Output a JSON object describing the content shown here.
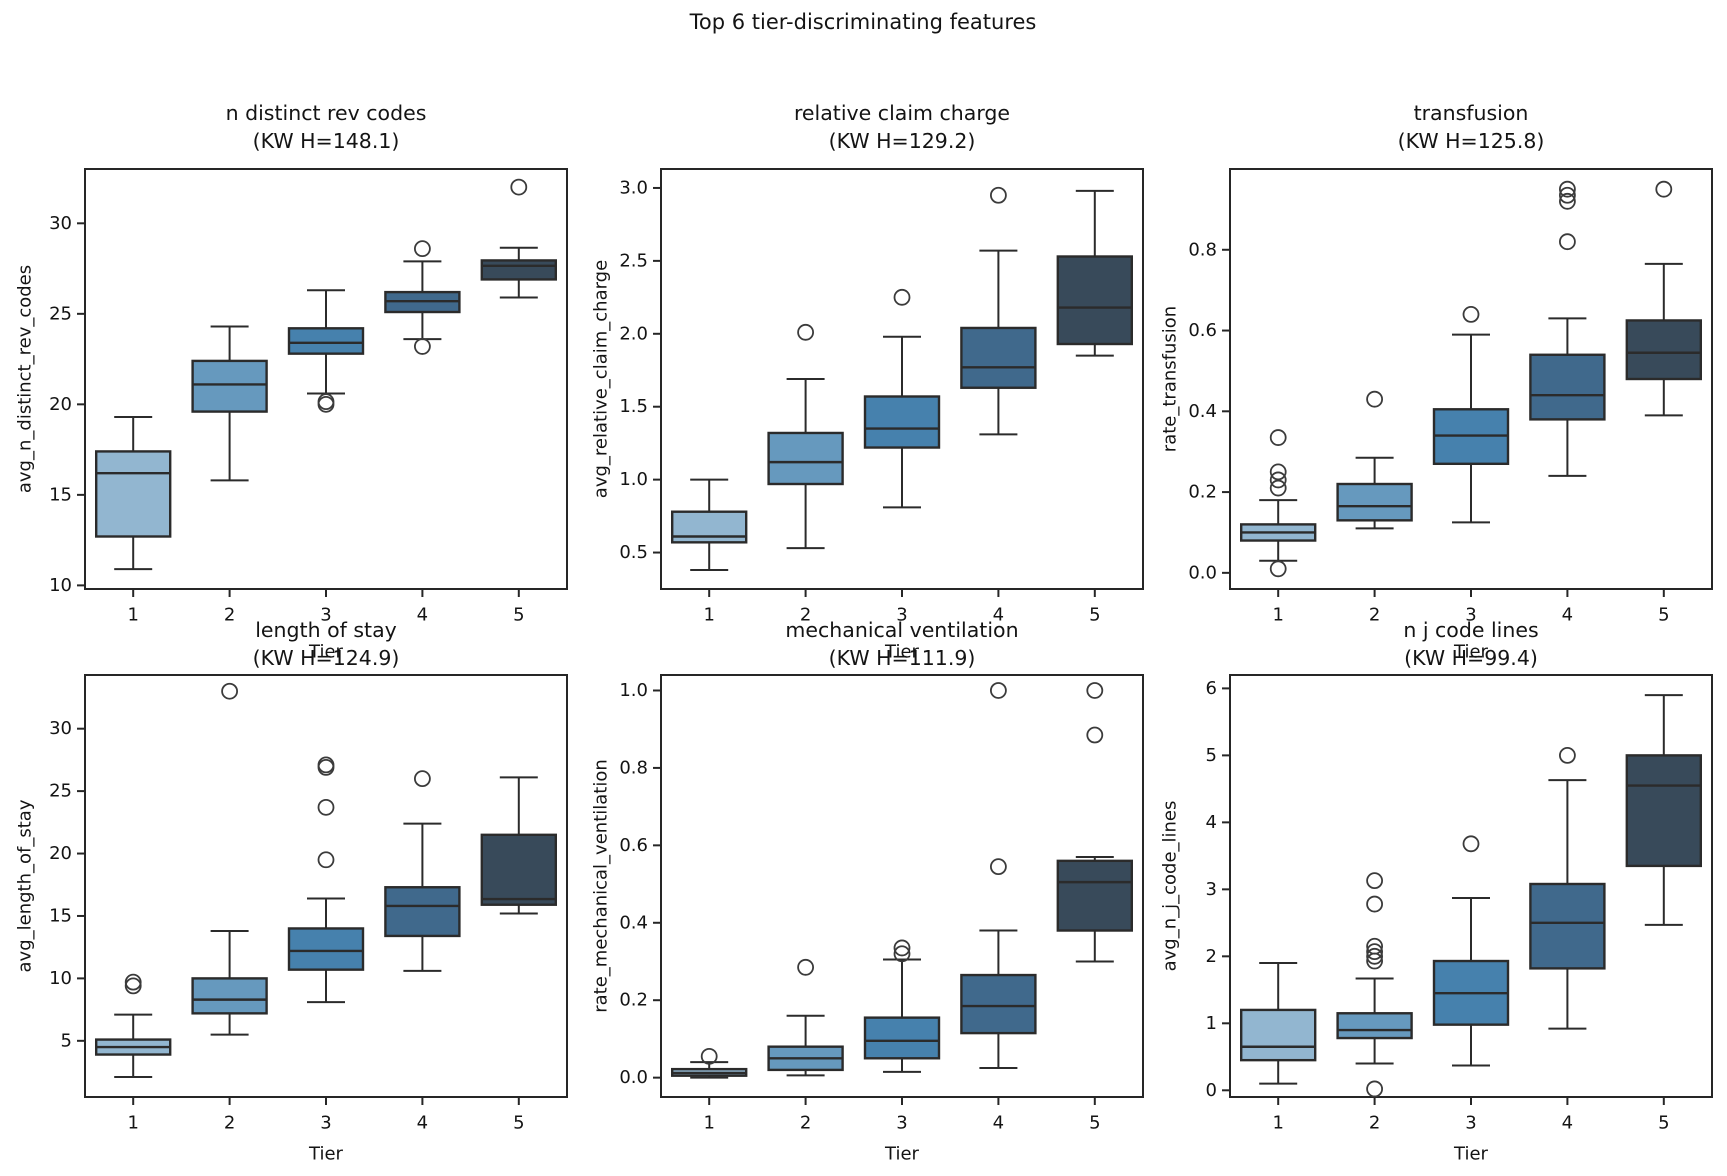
{
  "figure": {
    "title": "Top 6 tier-discriminating features",
    "background": "#ffffff",
    "tier_colors": [
      "#92b6d0",
      "#6699be",
      "#4681ad",
      "#40698c",
      "#384a5a"
    ],
    "edge_color": "#2b2b2b",
    "flier_color": "#3b3b3b",
    "spine_color": "#262626",
    "text_color": "#141414"
  },
  "chart_data": [
    {
      "type": "box",
      "title": "n distinct rev codes",
      "subtitle": "(KW H=148.1)",
      "ylabel": "avg_n_distinct_rev_codes",
      "xlabel": "Tier",
      "categories": [
        "1",
        "2",
        "3",
        "4",
        "5"
      ],
      "ylim": [
        9.8,
        33.0
      ],
      "ytick_values": [
        10,
        15,
        20,
        25,
        30
      ],
      "ytick_labels": [
        "10",
        "15",
        "20",
        "25",
        "30"
      ],
      "boxes": [
        {
          "tier": "1",
          "whislo": 10.9,
          "q1": 12.7,
          "med": 16.2,
          "q3": 17.4,
          "whishi": 19.3,
          "fliers": []
        },
        {
          "tier": "2",
          "whislo": 15.8,
          "q1": 19.6,
          "med": 21.1,
          "q3": 22.4,
          "whishi": 24.3,
          "fliers": []
        },
        {
          "tier": "3",
          "whislo": 20.6,
          "q1": 22.8,
          "med": 23.4,
          "q3": 24.2,
          "whishi": 26.3,
          "fliers": [
            20.0,
            20.15
          ]
        },
        {
          "tier": "4",
          "whislo": 23.6,
          "q1": 25.1,
          "med": 25.7,
          "q3": 26.2,
          "whishi": 27.9,
          "fliers": [
            23.2,
            28.6
          ]
        },
        {
          "tier": "5",
          "whislo": 25.9,
          "q1": 26.9,
          "med": 27.65,
          "q3": 27.95,
          "whishi": 28.65,
          "fliers": [
            32.0
          ]
        }
      ]
    },
    {
      "type": "box",
      "title": "relative claim charge",
      "subtitle": "(KW H=129.2)",
      "ylabel": "avg_relative_claim_charge",
      "xlabel": "Tier",
      "categories": [
        "1",
        "2",
        "3",
        "4",
        "5"
      ],
      "ylim": [
        0.25,
        3.13
      ],
      "ytick_values": [
        0.5,
        1.0,
        1.5,
        2.0,
        2.5,
        3.0
      ],
      "ytick_labels": [
        "0.5",
        "1.0",
        "1.5",
        "2.0",
        "2.5",
        "3.0"
      ],
      "boxes": [
        {
          "tier": "1",
          "whislo": 0.38,
          "q1": 0.57,
          "med": 0.61,
          "q3": 0.78,
          "whishi": 1.0,
          "fliers": []
        },
        {
          "tier": "2",
          "whislo": 0.53,
          "q1": 0.97,
          "med": 1.12,
          "q3": 1.32,
          "whishi": 1.69,
          "fliers": [
            2.01
          ]
        },
        {
          "tier": "3",
          "whislo": 0.81,
          "q1": 1.22,
          "med": 1.35,
          "q3": 1.57,
          "whishi": 1.98,
          "fliers": [
            2.25
          ]
        },
        {
          "tier": "4",
          "whislo": 1.31,
          "q1": 1.63,
          "med": 1.77,
          "q3": 2.04,
          "whishi": 2.57,
          "fliers": [
            2.95
          ]
        },
        {
          "tier": "5",
          "whislo": 1.85,
          "q1": 1.93,
          "med": 2.18,
          "q3": 2.53,
          "whishi": 2.98,
          "fliers": []
        }
      ]
    },
    {
      "type": "box",
      "title": "transfusion",
      "subtitle": "(KW H=125.8)",
      "ylabel": "rate_transfusion",
      "xlabel": "Tier",
      "categories": [
        "1",
        "2",
        "3",
        "4",
        "5"
      ],
      "ylim": [
        -0.04,
        1.0
      ],
      "ytick_values": [
        0.0,
        0.2,
        0.4,
        0.6,
        0.8
      ],
      "ytick_labels": [
        "0.0",
        "0.2",
        "0.4",
        "0.6",
        "0.8"
      ],
      "boxes": [
        {
          "tier": "1",
          "whislo": 0.03,
          "q1": 0.08,
          "med": 0.1,
          "q3": 0.12,
          "whishi": 0.18,
          "fliers": [
            0.01,
            0.21,
            0.23,
            0.25,
            0.335
          ]
        },
        {
          "tier": "2",
          "whislo": 0.11,
          "q1": 0.13,
          "med": 0.165,
          "q3": 0.22,
          "whishi": 0.285,
          "fliers": [
            0.43
          ]
        },
        {
          "tier": "3",
          "whislo": 0.125,
          "q1": 0.27,
          "med": 0.34,
          "q3": 0.405,
          "whishi": 0.59,
          "fliers": [
            0.64
          ]
        },
        {
          "tier": "4",
          "whislo": 0.24,
          "q1": 0.38,
          "med": 0.44,
          "q3": 0.54,
          "whishi": 0.63,
          "fliers": [
            0.82,
            0.92,
            0.935,
            0.95
          ]
        },
        {
          "tier": "5",
          "whislo": 0.39,
          "q1": 0.48,
          "med": 0.545,
          "q3": 0.625,
          "whishi": 0.765,
          "fliers": [
            0.95
          ]
        }
      ]
    },
    {
      "type": "box",
      "title": "length of stay",
      "subtitle": "(KW H=124.9)",
      "ylabel": "avg_length_of_stay",
      "xlabel": "Tier",
      "categories": [
        "1",
        "2",
        "3",
        "4",
        "5"
      ],
      "ylim": [
        0.5,
        34.3
      ],
      "ytick_values": [
        5,
        10,
        15,
        20,
        25,
        30
      ],
      "ytick_labels": [
        "5",
        "10",
        "15",
        "20",
        "25",
        "30"
      ],
      "boxes": [
        {
          "tier": "1",
          "whislo": 2.1,
          "q1": 3.9,
          "med": 4.5,
          "q3": 5.1,
          "whishi": 7.1,
          "fliers": [
            9.4,
            9.7
          ]
        },
        {
          "tier": "2",
          "whislo": 5.5,
          "q1": 7.2,
          "med": 8.3,
          "q3": 10.0,
          "whishi": 13.8,
          "fliers": [
            33.0
          ]
        },
        {
          "tier": "3",
          "whislo": 8.1,
          "q1": 10.7,
          "med": 12.2,
          "q3": 14.0,
          "whishi": 16.4,
          "fliers": [
            19.5,
            23.7,
            26.9,
            27.1
          ]
        },
        {
          "tier": "4",
          "whislo": 10.6,
          "q1": 13.4,
          "med": 15.8,
          "q3": 17.3,
          "whishi": 22.4,
          "fliers": [
            26.0
          ]
        },
        {
          "tier": "5",
          "whislo": 15.2,
          "q1": 15.9,
          "med": 16.35,
          "q3": 21.5,
          "whishi": 26.1,
          "fliers": []
        }
      ]
    },
    {
      "type": "box",
      "title": "mechanical ventilation",
      "subtitle": "(KW H=111.9)",
      "ylabel": "rate_mechanical_ventilation",
      "xlabel": "Tier",
      "categories": [
        "1",
        "2",
        "3",
        "4",
        "5"
      ],
      "ylim": [
        -0.05,
        1.04
      ],
      "ytick_values": [
        0.0,
        0.2,
        0.4,
        0.6,
        0.8,
        1.0
      ],
      "ytick_labels": [
        "0.0",
        "0.2",
        "0.4",
        "0.6",
        "0.8",
        "1.0"
      ],
      "boxes": [
        {
          "tier": "1",
          "whislo": 0.0,
          "q1": 0.005,
          "med": 0.012,
          "q3": 0.022,
          "whishi": 0.04,
          "fliers": [
            0.055
          ]
        },
        {
          "tier": "2",
          "whislo": 0.006,
          "q1": 0.02,
          "med": 0.05,
          "q3": 0.08,
          "whishi": 0.16,
          "fliers": [
            0.285
          ]
        },
        {
          "tier": "3",
          "whislo": 0.015,
          "q1": 0.05,
          "med": 0.095,
          "q3": 0.155,
          "whishi": 0.305,
          "fliers": [
            0.32,
            0.335
          ]
        },
        {
          "tier": "4",
          "whislo": 0.025,
          "q1": 0.115,
          "med": 0.185,
          "q3": 0.265,
          "whishi": 0.38,
          "fliers": [
            0.545,
            1.0
          ]
        },
        {
          "tier": "5",
          "whislo": 0.3,
          "q1": 0.38,
          "med": 0.505,
          "q3": 0.56,
          "whishi": 0.57,
          "fliers": [
            0.885,
            1.0
          ]
        }
      ]
    },
    {
      "type": "box",
      "title": "n j code lines",
      "subtitle": "(KW H=99.4)",
      "ylabel": "avg_n_j_code_lines",
      "xlabel": "Tier",
      "categories": [
        "1",
        "2",
        "3",
        "4",
        "5"
      ],
      "ylim": [
        -0.1,
        6.2
      ],
      "ytick_values": [
        0,
        1,
        2,
        3,
        4,
        5,
        6
      ],
      "ytick_labels": [
        "0",
        "1",
        "2",
        "3",
        "4",
        "5",
        "6"
      ],
      "boxes": [
        {
          "tier": "1",
          "whislo": 0.1,
          "q1": 0.45,
          "med": 0.65,
          "q3": 1.2,
          "whishi": 1.9,
          "fliers": []
        },
        {
          "tier": "2",
          "whislo": 0.4,
          "q1": 0.78,
          "med": 0.9,
          "q3": 1.15,
          "whishi": 1.67,
          "fliers": [
            0.02,
            1.93,
            2.0,
            2.07,
            2.15,
            2.78,
            3.13
          ]
        },
        {
          "tier": "3",
          "whislo": 0.37,
          "q1": 0.98,
          "med": 1.45,
          "q3": 1.93,
          "whishi": 2.87,
          "fliers": [
            3.68
          ]
        },
        {
          "tier": "4",
          "whislo": 0.92,
          "q1": 1.82,
          "med": 2.5,
          "q3": 3.08,
          "whishi": 4.63,
          "fliers": [
            5.0
          ]
        },
        {
          "tier": "5",
          "whislo": 2.47,
          "q1": 3.35,
          "med": 4.55,
          "q3": 5.0,
          "whishi": 5.9,
          "fliers": []
        }
      ]
    }
  ]
}
